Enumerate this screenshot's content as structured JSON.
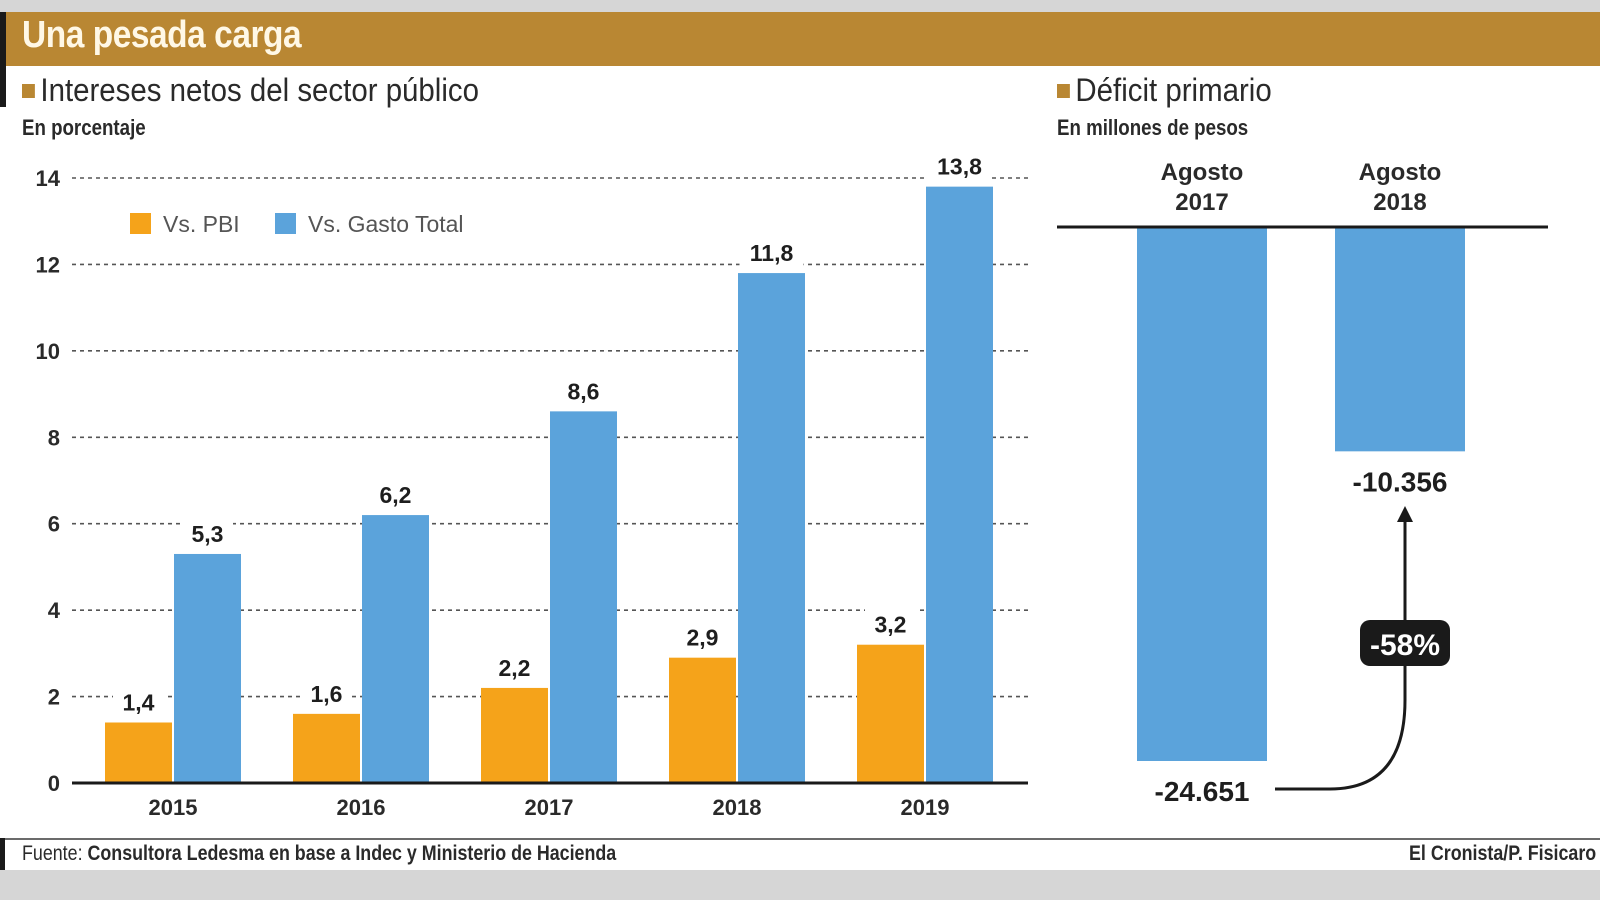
{
  "header": {
    "title": "Una pesada carga"
  },
  "colors": {
    "brand": "#b98733",
    "series_pbi": "#f5a31a",
    "series_gasto": "#5ba3db",
    "text": "#2a2a2a",
    "badge_bg": "#1a1a1a"
  },
  "left_section": {
    "title": "Intereses netos del sector público",
    "subtitle": "En porcentaje"
  },
  "right_section": {
    "title": "Déficit primario",
    "subtitle": "En millones de pesos"
  },
  "footer": {
    "source_label": "Fuente:",
    "source_text": "Consultora Ledesma en base a Indec y Ministerio de Hacienda",
    "credit": "El Cronista/P.  Fisicaro"
  },
  "chart_data": [
    {
      "type": "bar",
      "title": "Intereses netos del sector público",
      "subtitle": "En porcentaje",
      "xlabel": "",
      "ylabel": "",
      "categories": [
        "2015",
        "2016",
        "2017",
        "2018",
        "2019"
      ],
      "series": [
        {
          "name": "Vs. PBI",
          "values": [
            1.4,
            1.6,
            2.2,
            2.9,
            3.2
          ],
          "labels": [
            "1,4",
            "1,6",
            "2,2",
            "2,9",
            "3,2"
          ]
        },
        {
          "name": "Vs. Gasto Total",
          "values": [
            5.3,
            6.2,
            8.6,
            11.8,
            13.8
          ],
          "labels": [
            "5,3",
            "6,2",
            "8,6",
            "11,8",
            "13,8"
          ]
        }
      ],
      "ylim": [
        0,
        14
      ],
      "yticks": [
        0,
        2,
        4,
        6,
        8,
        10,
        12,
        14
      ],
      "grid": true,
      "legend": "top-left"
    },
    {
      "type": "bar",
      "title": "Déficit primario",
      "subtitle": "En millones de pesos",
      "categories": [
        [
          "Agosto",
          "2017"
        ],
        [
          "Agosto",
          "2018"
        ]
      ],
      "values": [
        -24651,
        -10356
      ],
      "labels": [
        "-24.651",
        "-10.356"
      ],
      "ylim": [
        -24651,
        0
      ],
      "annotation": {
        "text": "-58%",
        "from": "Agosto 2017",
        "to": "Agosto 2018"
      }
    }
  ]
}
